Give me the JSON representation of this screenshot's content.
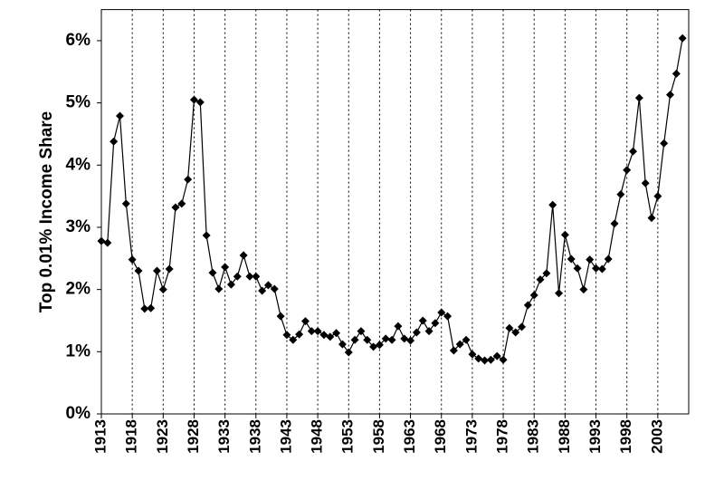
{
  "chart_data": {
    "type": "line",
    "y_label": "Top 0.01% Income Share",
    "x": [
      1913,
      1914,
      1915,
      1916,
      1917,
      1918,
      1919,
      1920,
      1921,
      1922,
      1923,
      1924,
      1925,
      1926,
      1927,
      1928,
      1929,
      1930,
      1931,
      1932,
      1933,
      1934,
      1935,
      1936,
      1937,
      1938,
      1939,
      1940,
      1941,
      1942,
      1943,
      1944,
      1945,
      1946,
      1947,
      1948,
      1949,
      1950,
      1951,
      1952,
      1953,
      1954,
      1955,
      1956,
      1957,
      1958,
      1959,
      1960,
      1961,
      1962,
      1963,
      1964,
      1965,
      1966,
      1967,
      1968,
      1969,
      1970,
      1971,
      1972,
      1973,
      1974,
      1975,
      1976,
      1977,
      1978,
      1979,
      1980,
      1981,
      1982,
      1983,
      1984,
      1985,
      1986,
      1987,
      1988,
      1989,
      1990,
      1991,
      1992,
      1993,
      1994,
      1995,
      1996,
      1997,
      1998,
      1999,
      2000,
      2001,
      2002,
      2003,
      2004,
      2005,
      2006,
      2007
    ],
    "series": [
      {
        "color": "#000000",
        "values": [
          2.78,
          2.75,
          4.38,
          4.79,
          3.38,
          2.48,
          2.3,
          1.69,
          1.7,
          2.3,
          2.0,
          2.33,
          3.32,
          3.38,
          3.77,
          5.05,
          5.01,
          2.87,
          2.27,
          2.01,
          2.36,
          2.08,
          2.21,
          2.55,
          2.21,
          2.21,
          1.98,
          2.07,
          2.01,
          1.57,
          1.27,
          1.19,
          1.28,
          1.49,
          1.33,
          1.33,
          1.27,
          1.24,
          1.3,
          1.12,
          0.99,
          1.19,
          1.33,
          1.19,
          1.08,
          1.11,
          1.21,
          1.19,
          1.41,
          1.21,
          1.18,
          1.31,
          1.5,
          1.33,
          1.46,
          1.63,
          1.57,
          1.02,
          1.12,
          1.19,
          0.96,
          0.89,
          0.86,
          0.87,
          0.93,
          0.87,
          1.38,
          1.31,
          1.4,
          1.75,
          1.91,
          2.16,
          2.26,
          3.36,
          1.94,
          2.88,
          2.49,
          2.34,
          2.0,
          2.48,
          2.34,
          2.33,
          2.49,
          3.06,
          3.53,
          3.92,
          4.22,
          5.08,
          3.71,
          3.15,
          3.5,
          4.35,
          5.13,
          5.47,
          6.04
        ]
      }
    ],
    "xlim": [
      1913,
      2008
    ],
    "xticks": [
      1913,
      1918,
      1923,
      1928,
      1933,
      1938,
      1943,
      1948,
      1953,
      1958,
      1963,
      1968,
      1973,
      1978,
      1983,
      1988,
      1993,
      1998,
      2003
    ],
    "ylim": [
      0,
      6.5
    ],
    "yticks": [
      {
        "value": 0,
        "label": "0%"
      },
      {
        "value": 1,
        "label": "1%"
      },
      {
        "value": 2,
        "label": "2%"
      },
      {
        "value": 3,
        "label": "3%"
      },
      {
        "value": 4,
        "label": "4%"
      },
      {
        "value": 5,
        "label": "5%"
      },
      {
        "value": 6,
        "label": "6%"
      }
    ],
    "grid": "x"
  }
}
